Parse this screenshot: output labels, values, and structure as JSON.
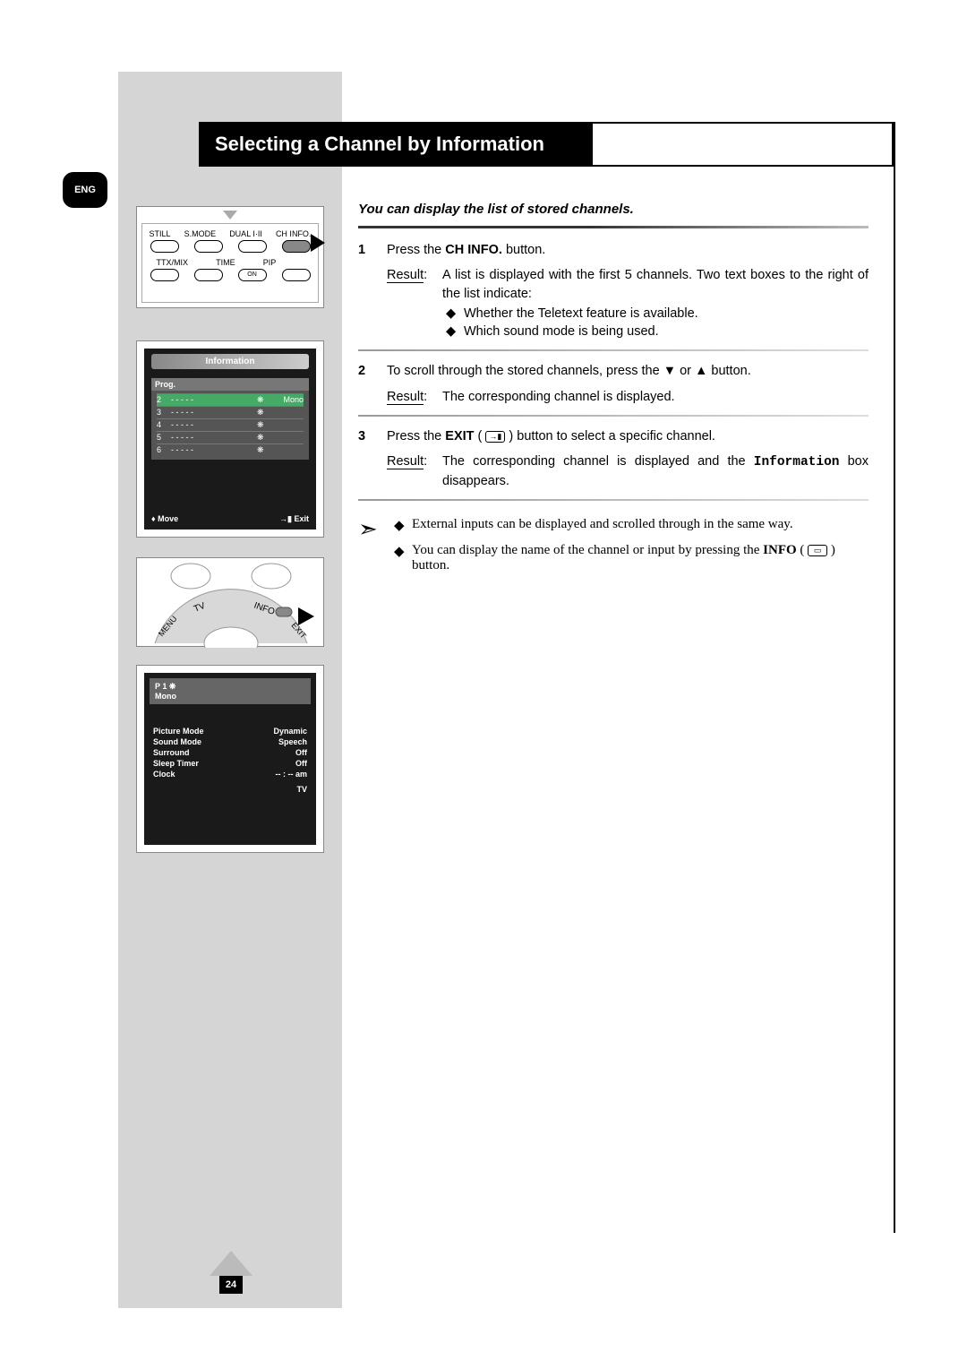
{
  "lang_tab": "ENG",
  "title": "Selecting a Channel by Information",
  "intro": "You can display the list of stored channels.",
  "steps": [
    {
      "num": "1",
      "text_before": "Press the ",
      "bold": "CH INFO.",
      "text_after": " button.",
      "result_label": "Result",
      "result_text": "A list is displayed with the first 5 channels. Two text boxes to the right of the list indicate:",
      "bullets": [
        "Whether the Teletext feature is available.",
        "Which sound mode is being used."
      ]
    },
    {
      "num": "2",
      "text": "To scroll through the stored channels, press the ▼ or ▲ button.",
      "result_label": "Result",
      "result_text": "The corresponding channel is displayed."
    },
    {
      "num": "3",
      "text_before": "Press the ",
      "bold": "EXIT",
      "text_mid": " ( ",
      "icon": "→▮",
      "text_after": " ) button to select a specific channel.",
      "result_label": "Result",
      "result_text_before": "The corresponding channel is displayed and the ",
      "mono": "Information",
      "result_text_after": " box disappears."
    }
  ],
  "notes": [
    "External inputs can be displayed and scrolled through in the same way.",
    {
      "before": "You can display the name  of the channel or input by pressing the ",
      "bold": "INFO",
      "mid": " ( ",
      "icon": "▭",
      "after": " ) button."
    }
  ],
  "remote1": {
    "row1": [
      "STILL",
      "S.MODE",
      "DUAL I·II",
      "CH INFO."
    ],
    "row2": [
      "TTX/MIX",
      "TIME",
      "PIP",
      ""
    ],
    "row2b": [
      "",
      "",
      "ON",
      ""
    ]
  },
  "osd_info": {
    "title": "Information",
    "prog": "Prog.",
    "rows": [
      {
        "n": "2",
        "d": "- - - - -",
        "s": "❋",
        "m": "Mono",
        "sel": true
      },
      {
        "n": "3",
        "d": "- - - - -",
        "s": "❋",
        "m": "",
        "sel": false
      },
      {
        "n": "4",
        "d": "- - - - -",
        "s": "❋",
        "m": "",
        "sel": false
      },
      {
        "n": "5",
        "d": "- - - - -",
        "s": "❋",
        "m": "",
        "sel": false
      },
      {
        "n": "6",
        "d": "- - - - -",
        "s": "❋",
        "m": "",
        "sel": false
      }
    ],
    "move": "Move",
    "exit": "Exit"
  },
  "remote2": {
    "labels": [
      "TV",
      "INFO",
      "MENU",
      "EXIT"
    ]
  },
  "osd_status": {
    "ch": "P 1  ❋",
    "snd": "Mono",
    "rows": [
      [
        "Picture Mode",
        "Dynamic"
      ],
      [
        "Sound Mode",
        "Speech"
      ],
      [
        "Surround",
        "Off"
      ],
      [
        "Sleep Timer",
        "Off"
      ],
      [
        "Clock",
        "-- : --  am"
      ]
    ],
    "src": "TV"
  },
  "page_number": "24",
  "diamond": "◆",
  "arrow": "➣",
  "updown": "♦"
}
